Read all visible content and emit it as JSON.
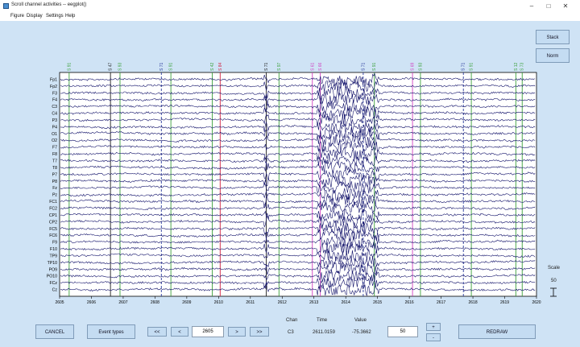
{
  "window": {
    "title": "Scroll channel activities -- eegplot()",
    "minimize_glyph": "–",
    "maximize_glyph": "□",
    "close_glyph": "✕"
  },
  "menu": [
    "Figure",
    "Display",
    "Settings",
    "Help"
  ],
  "side_buttons": {
    "stack": "Stack",
    "norm": "Norm"
  },
  "scale": {
    "label": "Scale",
    "value": "50"
  },
  "plot": {
    "channels": [
      "Fp1",
      "Fp2",
      "F3",
      "F4",
      "C3",
      "C4",
      "P3",
      "P4",
      "O1",
      "O2",
      "F7",
      "F8",
      "T7",
      "T8",
      "P7",
      "P8",
      "Fz",
      "Pz",
      "FC1",
      "FC2",
      "CP1",
      "CP2",
      "FC5",
      "FC6",
      "F9",
      "F10",
      "TP9",
      "TP10",
      "PO9",
      "PO10",
      "FCz",
      "Cz"
    ],
    "x_ticks": [
      "2605",
      "2606",
      "2607",
      "2608",
      "2609",
      "2610",
      "2611",
      "2612",
      "2613",
      "2614",
      "2615",
      "2616",
      "2617",
      "2618",
      "2619",
      "2620"
    ],
    "x_range": [
      2605,
      2620
    ],
    "events": [
      {
        "t": 2605.3,
        "label": "S 91",
        "color": "#3ca03c"
      },
      {
        "t": 2606.6,
        "label": "S 47",
        "color": "#202020"
      },
      {
        "t": 2606.9,
        "label": "S 93",
        "color": "#3ca03c"
      },
      {
        "t": 2608.2,
        "label": "S 71",
        "color": "#2a3a9c"
      },
      {
        "t": 2608.5,
        "label": "S 91",
        "color": "#3ca03c"
      },
      {
        "t": 2609.8,
        "label": "S 42",
        "color": "#3ca03c"
      },
      {
        "t": 2610.05,
        "label": "S 84",
        "color": "#d02040"
      },
      {
        "t": 2611.5,
        "label": "S 71",
        "color": "#202020"
      },
      {
        "t": 2611.9,
        "label": "S 97",
        "color": "#3ca03c"
      },
      {
        "t": 2612.95,
        "label": "S 61",
        "color": "#d040c0"
      },
      {
        "t": 2613.2,
        "label": "S 66",
        "color": "#d040c0"
      },
      {
        "t": 2614.55,
        "label": "S 71",
        "color": "#2a3a9c"
      },
      {
        "t": 2614.9,
        "label": "S 91",
        "color": "#3ca03c"
      },
      {
        "t": 2616.1,
        "label": "S 69",
        "color": "#d040c0"
      },
      {
        "t": 2616.35,
        "label": "S 93",
        "color": "#3ca03c"
      },
      {
        "t": 2617.7,
        "label": "S 71",
        "color": "#2a3a9c"
      },
      {
        "t": 2617.95,
        "label": "S 91",
        "color": "#3ca03c"
      },
      {
        "t": 2619.35,
        "label": "S 12",
        "color": "#3ca03c"
      },
      {
        "t": 2619.55,
        "label": "S 73",
        "color": "#3ca03c"
      }
    ]
  },
  "controls": {
    "cancel": "CANCEL",
    "event_types": "Event types",
    "first": "<<",
    "prev": "<",
    "position": "2605",
    "next": ">",
    "last": ">>",
    "amp_value": "50",
    "amp_up": "+",
    "amp_down": "-",
    "redraw": "REDRAW"
  },
  "readout": {
    "chan_label": "Chan",
    "time_label": "Time",
    "value_label": "Value",
    "chan": "C3",
    "time": "2611.0159",
    "value": "-75.3662"
  },
  "colors": {
    "trace": "#12126a",
    "background": "#cfe3f5",
    "plot_bg": "#ffffff"
  }
}
